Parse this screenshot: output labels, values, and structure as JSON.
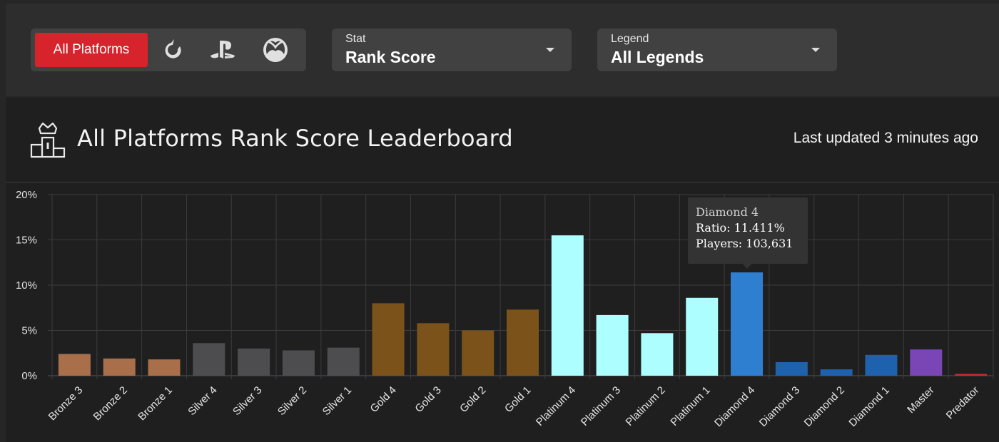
{
  "filters": {
    "platforms": {
      "active_label": "All Platforms",
      "icons": [
        "origin-icon",
        "playstation-icon",
        "xbox-icon"
      ]
    },
    "stat": {
      "label": "Stat",
      "value": "Rank Score"
    },
    "legend": {
      "label": "Legend",
      "value": "All Legends"
    }
  },
  "leaderboard": {
    "title": "All Platforms Rank Score Leaderboard",
    "last_updated": "Last updated 3 minutes ago"
  },
  "tooltip": {
    "title": "Diamond 4",
    "ratio_line": "Ratio: 11.411%",
    "players_line": "Players: 103,631"
  },
  "colors": {
    "accent": "#d7232b",
    "bronze": "#a86f4a",
    "silver": "#4d4c4f",
    "gold": "#7b531a",
    "platinum": "#adffff",
    "diamond": "#1e62ad",
    "diamond_highlight": "#2f7fd0",
    "master": "#7a45b5",
    "predator": "#c42b28"
  },
  "chart_data": {
    "type": "bar",
    "categories": [
      "Bronze 3",
      "Bronze 2",
      "Bronze 1",
      "Silver 4",
      "Silver 3",
      "Silver 2",
      "Silver 1",
      "Gold 4",
      "Gold 3",
      "Gold 2",
      "Gold 1",
      "Platinum 4",
      "Platinum 3",
      "Platinum 2",
      "Platinum 1",
      "Diamond 4",
      "Diamond 3",
      "Diamond 2",
      "Diamond 1",
      "Master",
      "Predator"
    ],
    "values": [
      2.4,
      1.9,
      1.8,
      3.6,
      3.0,
      2.8,
      3.1,
      8.0,
      5.8,
      5.0,
      7.3,
      15.5,
      6.7,
      4.7,
      8.6,
      11.411,
      1.5,
      0.7,
      2.3,
      2.9,
      0.2
    ],
    "tiers": [
      "bronze",
      "bronze",
      "bronze",
      "silver",
      "silver",
      "silver",
      "silver",
      "gold",
      "gold",
      "gold",
      "gold",
      "platinum",
      "platinum",
      "platinum",
      "platinum",
      "diamond",
      "diamond",
      "diamond",
      "diamond",
      "master",
      "predator"
    ],
    "ylim": [
      0,
      20
    ],
    "yticks": [
      0,
      5,
      10,
      15,
      20
    ],
    "ytick_labels": [
      "0%",
      "5%",
      "10%",
      "15%",
      "20%"
    ],
    "highlighted": "Diamond 4",
    "grid": true
  }
}
